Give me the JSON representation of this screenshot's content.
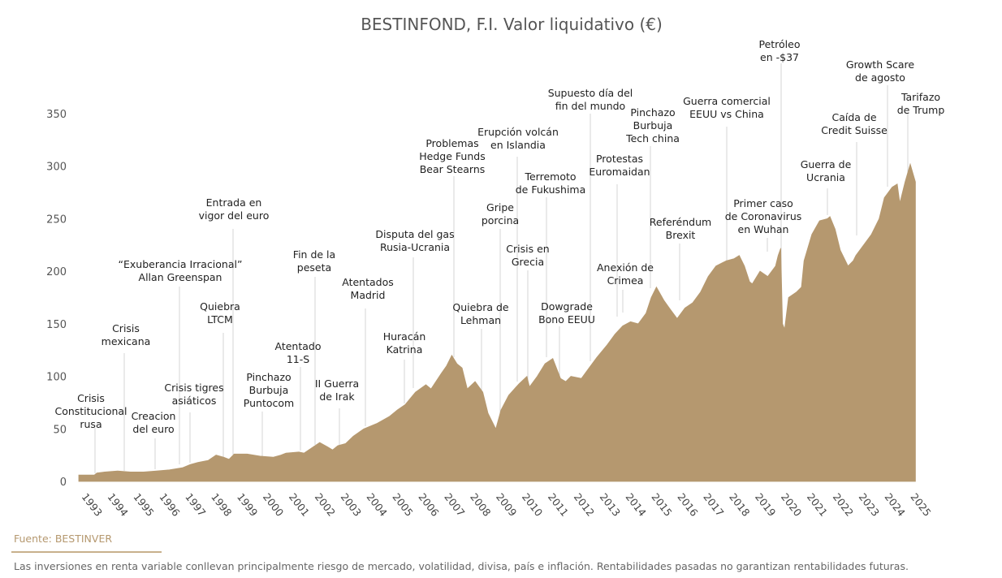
{
  "chart_data": {
    "type": "area",
    "title": "BESTINFOND, F.I. Valor liquidativo (€)",
    "fill_color": "#b5986f",
    "ylim": [
      0,
      350
    ],
    "yticks": [
      0,
      50,
      100,
      150,
      200,
      250,
      300,
      350
    ],
    "xlim": [
      1993,
      2025.3
    ],
    "xticks": [
      "1993",
      "1994",
      "1995",
      "1996",
      "1997",
      "1998",
      "1999",
      "2000",
      "2001",
      "2002",
      "2003",
      "2004",
      "2005",
      "2006",
      "2007",
      "2008",
      "2009",
      "2010",
      "2011",
      "2012",
      "2013",
      "2014",
      "2015",
      "2016",
      "2017",
      "2018",
      "2019",
      "2020",
      "2021",
      "2022",
      "2023",
      "2024",
      "2025"
    ],
    "grid": false,
    "series": [
      {
        "points": [
          [
            1993.0,
            6
          ],
          [
            1993.6,
            6
          ],
          [
            1993.7,
            8
          ],
          [
            1994.0,
            9
          ],
          [
            1994.5,
            10
          ],
          [
            1995.0,
            9
          ],
          [
            1995.5,
            9
          ],
          [
            1996.0,
            10
          ],
          [
            1996.5,
            11
          ],
          [
            1997.0,
            13
          ],
          [
            1997.3,
            16
          ],
          [
            1997.6,
            18
          ],
          [
            1998.0,
            20
          ],
          [
            1998.3,
            25
          ],
          [
            1998.6,
            23
          ],
          [
            1998.8,
            21
          ],
          [
            1999.0,
            26
          ],
          [
            1999.5,
            26
          ],
          [
            2000.0,
            24
          ],
          [
            2000.5,
            23
          ],
          [
            2000.8,
            25
          ],
          [
            2001.0,
            27
          ],
          [
            2001.5,
            28
          ],
          [
            2001.7,
            27
          ],
          [
            2002.0,
            32
          ],
          [
            2002.3,
            37
          ],
          [
            2002.6,
            33
          ],
          [
            2002.8,
            30
          ],
          [
            2003.0,
            34
          ],
          [
            2003.3,
            36
          ],
          [
            2003.6,
            43
          ],
          [
            2004.0,
            50
          ],
          [
            2004.5,
            55
          ],
          [
            2005.0,
            62
          ],
          [
            2005.3,
            68
          ],
          [
            2005.6,
            73
          ],
          [
            2006.0,
            85
          ],
          [
            2006.4,
            92
          ],
          [
            2006.6,
            88
          ],
          [
            2007.0,
            103
          ],
          [
            2007.2,
            110
          ],
          [
            2007.4,
            120
          ],
          [
            2007.6,
            112
          ],
          [
            2007.8,
            108
          ],
          [
            2008.0,
            88
          ],
          [
            2008.3,
            95
          ],
          [
            2008.6,
            85
          ],
          [
            2008.8,
            65
          ],
          [
            2009.0,
            55
          ],
          [
            2009.1,
            50
          ],
          [
            2009.3,
            68
          ],
          [
            2009.6,
            82
          ],
          [
            2010.0,
            93
          ],
          [
            2010.3,
            100
          ],
          [
            2010.4,
            90
          ],
          [
            2010.7,
            100
          ],
          [
            2011.0,
            112
          ],
          [
            2011.3,
            117
          ],
          [
            2011.6,
            98
          ],
          [
            2011.8,
            95
          ],
          [
            2012.0,
            100
          ],
          [
            2012.4,
            98
          ],
          [
            2012.7,
            108
          ],
          [
            2013.0,
            118
          ],
          [
            2013.4,
            130
          ],
          [
            2013.7,
            140
          ],
          [
            2014.0,
            148
          ],
          [
            2014.3,
            152
          ],
          [
            2014.6,
            150
          ],
          [
            2014.9,
            160
          ],
          [
            2015.1,
            175
          ],
          [
            2015.3,
            185
          ],
          [
            2015.6,
            172
          ],
          [
            2015.8,
            165
          ],
          [
            2016.1,
            155
          ],
          [
            2016.4,
            165
          ],
          [
            2016.7,
            170
          ],
          [
            2017.0,
            180
          ],
          [
            2017.3,
            195
          ],
          [
            2017.6,
            205
          ],
          [
            2018.0,
            210
          ],
          [
            2018.3,
            212
          ],
          [
            2018.5,
            215
          ],
          [
            2018.7,
            205
          ],
          [
            2018.9,
            190
          ],
          [
            2019.0,
            188
          ],
          [
            2019.3,
            200
          ],
          [
            2019.6,
            195
          ],
          [
            2019.9,
            205
          ],
          [
            2020.0,
            215
          ],
          [
            2020.1,
            222
          ],
          [
            2020.17,
            150
          ],
          [
            2020.25,
            145
          ],
          [
            2020.4,
            175
          ],
          [
            2020.7,
            180
          ],
          [
            2020.9,
            185
          ],
          [
            2021.0,
            210
          ],
          [
            2021.3,
            235
          ],
          [
            2021.6,
            248
          ],
          [
            2021.9,
            250
          ],
          [
            2022.0,
            252
          ],
          [
            2022.2,
            240
          ],
          [
            2022.4,
            220
          ],
          [
            2022.7,
            205
          ],
          [
            2022.9,
            210
          ],
          [
            2023.0,
            215
          ],
          [
            2023.3,
            225
          ],
          [
            2023.6,
            235
          ],
          [
            2023.9,
            250
          ],
          [
            2024.1,
            270
          ],
          [
            2024.4,
            280
          ],
          [
            2024.6,
            283
          ],
          [
            2024.7,
            265
          ],
          [
            2024.9,
            285
          ],
          [
            2025.1,
            302
          ],
          [
            2025.3,
            285
          ]
        ]
      }
    ],
    "annotations": [
      {
        "lines": [
          "Crisis",
          "Constitucional",
          "rusa"
        ]
      },
      {
        "lines": [
          "Crisis",
          "mexicana"
        ]
      },
      {
        "lines": [
          "Creacion",
          "del euro"
        ]
      },
      {
        "lines": [
          "“Exuberancia Irracional”",
          "Allan Greenspan"
        ]
      },
      {
        "lines": [
          "Crisis tigres",
          "asiáticos"
        ]
      },
      {
        "lines": [
          "Quiebra",
          "LTCM"
        ]
      },
      {
        "lines": [
          "Entrada en",
          "vigor del euro"
        ]
      },
      {
        "lines": [
          "Pinchazo",
          "Burbuja",
          "Puntocom"
        ]
      },
      {
        "lines": [
          "Atentado",
          "11-S"
        ]
      },
      {
        "lines": [
          "Fin de la",
          "peseta"
        ]
      },
      {
        "lines": [
          "II Guerra",
          "de Irak"
        ]
      },
      {
        "lines": [
          "Atentados",
          "Madrid"
        ]
      },
      {
        "lines": [
          "Huracán",
          "Katrina"
        ]
      },
      {
        "lines": [
          "Disputa del gas",
          "Rusia-Ucrania"
        ]
      },
      {
        "lines": [
          "Problemas",
          "Hedge Funds",
          "Bear Stearns"
        ]
      },
      {
        "lines": [
          "Quiebra de",
          "Lehman"
        ]
      },
      {
        "lines": [
          "Gripe",
          "porcina"
        ]
      },
      {
        "lines": [
          "Erupción volcán",
          "en Islandia"
        ]
      },
      {
        "lines": [
          "Crisis en",
          "Grecia"
        ]
      },
      {
        "lines": [
          "Terremoto",
          "de Fukushima"
        ]
      },
      {
        "lines": [
          "Dowgrade",
          "Bono EEUU"
        ]
      },
      {
        "lines": [
          "Supuesto día del",
          "fin del mundo"
        ]
      },
      {
        "lines": [
          "Protestas",
          "Euromaidan"
        ]
      },
      {
        "lines": [
          "Anexión de",
          "Crimea"
        ]
      },
      {
        "lines": [
          "Pinchazo",
          "Burbuja",
          "Tech china"
        ]
      },
      {
        "lines": [
          "Referéndum",
          "Brexit"
        ]
      },
      {
        "lines": [
          "Guerra comercial",
          "EEUU vs China"
        ]
      },
      {
        "lines": [
          "Primer caso",
          "de Coronavirus",
          "en Wuhan"
        ]
      },
      {
        "lines": [
          "Petróleo",
          "en -$37"
        ]
      },
      {
        "lines": [
          "Guerra de",
          "Ucrania"
        ]
      },
      {
        "lines": [
          "Caída de",
          "Credit Suisse"
        ]
      },
      {
        "lines": [
          "Growth Scare",
          "de agosto"
        ]
      },
      {
        "lines": [
          "Tarifazo",
          "de Trump"
        ]
      }
    ]
  },
  "footer": {
    "source": "Fuente: BESTINVER",
    "disclaimer": "Las inversiones en renta variable conllevan principalmente riesgo de mercado, volatilidad, divisa, país e inflación. Rentabilidades pasadas no garantizan rentabilidades futuras."
  }
}
